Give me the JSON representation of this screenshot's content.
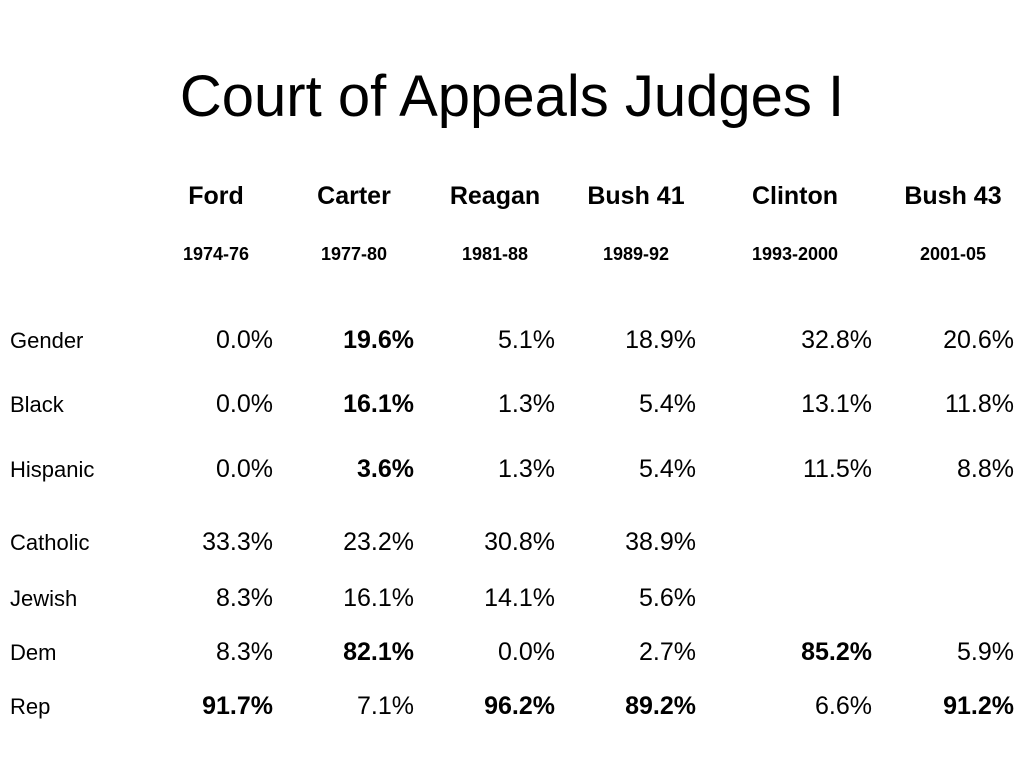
{
  "title": "Court of Appeals Judges I",
  "columns": [
    {
      "name": "Ford",
      "years": "1974-76"
    },
    {
      "name": "Carter",
      "years": "1977-80"
    },
    {
      "name": "Reagan",
      "years": "1981-88"
    },
    {
      "name": "Bush 41",
      "years": "1989-92"
    },
    {
      "name": "Clinton",
      "years": "1993-2000"
    },
    {
      "name": "Bush 43",
      "years": "2001-05"
    }
  ],
  "rows": [
    {
      "label": "Gender",
      "values": [
        "0.0%",
        "19.6%",
        "5.1%",
        "18.9%",
        "32.8%",
        "20.6%"
      ],
      "bold": [
        false,
        true,
        false,
        false,
        false,
        false
      ]
    },
    {
      "label": "Black",
      "values": [
        "0.0%",
        "16.1%",
        "1.3%",
        "5.4%",
        "13.1%",
        "11.8%"
      ],
      "bold": [
        false,
        true,
        false,
        false,
        false,
        false
      ]
    },
    {
      "label": "Hispanic",
      "values": [
        "0.0%",
        "3.6%",
        "1.3%",
        "5.4%",
        "11.5%",
        "8.8%"
      ],
      "bold": [
        false,
        true,
        false,
        false,
        false,
        false
      ]
    },
    {
      "label": "Catholic",
      "values": [
        "33.3%",
        "23.2%",
        "30.8%",
        "38.9%",
        "",
        ""
      ],
      "bold": [
        false,
        false,
        false,
        false,
        false,
        false
      ]
    },
    {
      "label": "Jewish",
      "values": [
        "8.3%",
        "16.1%",
        "14.1%",
        "5.6%",
        "",
        ""
      ],
      "bold": [
        false,
        false,
        false,
        false,
        false,
        false
      ]
    },
    {
      "label": "Dem",
      "values": [
        "8.3%",
        "82.1%",
        "0.0%",
        "2.7%",
        "85.2%",
        "5.9%"
      ],
      "bold": [
        false,
        true,
        false,
        false,
        true,
        false
      ]
    },
    {
      "label": "Rep",
      "values": [
        "91.7%",
        "7.1%",
        "96.2%",
        "89.2%",
        "6.6%",
        "91.2%"
      ],
      "bold": [
        true,
        false,
        true,
        true,
        false,
        true
      ]
    }
  ]
}
